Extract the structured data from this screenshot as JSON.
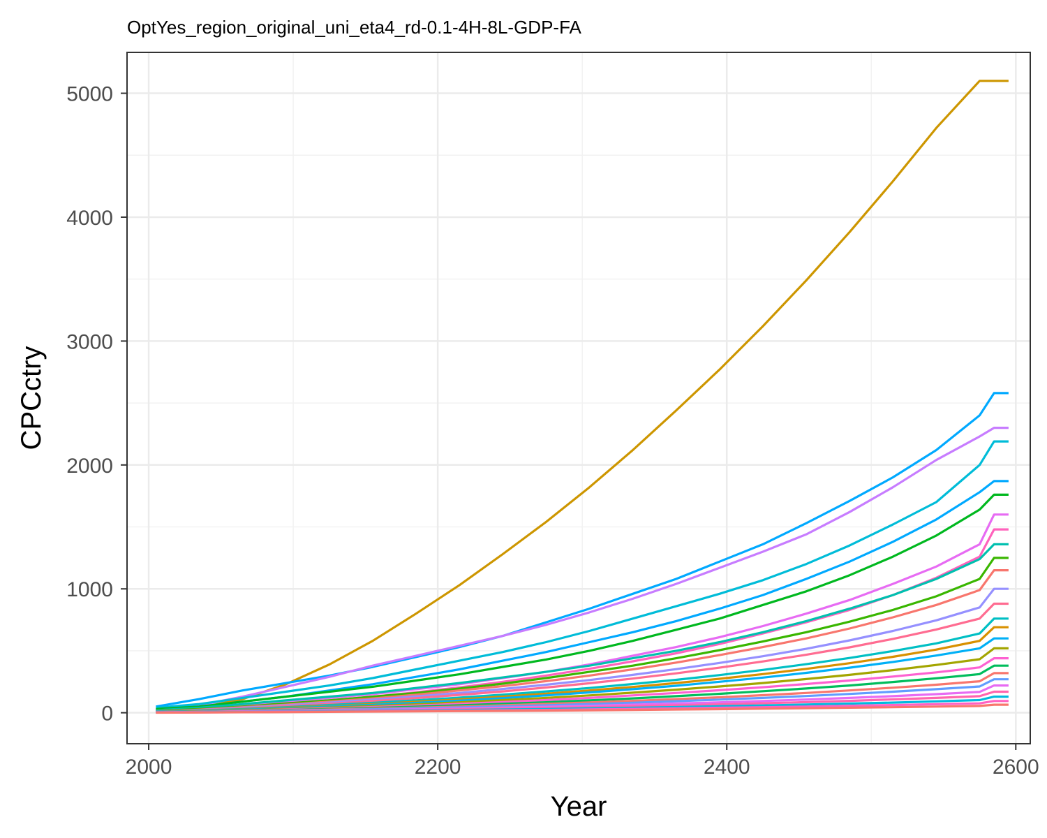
{
  "chart_data": {
    "type": "line",
    "title": "OptYes_region_original_uni_eta4_rd-0.1-4H-8L-GDP-FA",
    "xlabel": "Year",
    "ylabel": "CPCctry",
    "xlim": [
      1985,
      2610
    ],
    "ylim": [
      -250,
      5330
    ],
    "x_ticks": [
      2000,
      2200,
      2400,
      2600
    ],
    "y_ticks": [
      0,
      1000,
      2000,
      3000,
      4000,
      5000
    ],
    "x_tick_labels": [
      "2000",
      "2200",
      "2400",
      "2600"
    ],
    "y_tick_labels": [
      "0",
      "1000",
      "2000",
      "3000",
      "4000",
      "5000"
    ],
    "grid": true,
    "legend": "none",
    "x": [
      2005,
      2035,
      2065,
      2095,
      2125,
      2155,
      2185,
      2215,
      2245,
      2275,
      2305,
      2335,
      2365,
      2395,
      2425,
      2455,
      2485,
      2515,
      2545,
      2575,
      2585,
      2595
    ],
    "series": [
      {
        "color": "#CD9600",
        "values": [
          20,
          40,
          110,
          230,
          390,
          580,
          800,
          1030,
          1280,
          1540,
          1820,
          2120,
          2440,
          2770,
          3120,
          3490,
          3880,
          4290,
          4720,
          5100,
          5100,
          5100
        ]
      },
      {
        "color": "#00A9FF",
        "values": [
          50,
          110,
          180,
          240,
          300,
          370,
          450,
          530,
          620,
          730,
          840,
          960,
          1080,
          1220,
          1360,
          1530,
          1710,
          1900,
          2120,
          2400,
          2580,
          2580
        ]
      },
      {
        "color": "#C77CFF",
        "values": [
          30,
          60,
          130,
          210,
          290,
          380,
          460,
          540,
          620,
          710,
          810,
          920,
          1040,
          1170,
          1300,
          1440,
          1620,
          1820,
          2040,
          2230,
          2300,
          2300
        ]
      },
      {
        "color": "#00BCD8",
        "values": [
          40,
          70,
          120,
          170,
          220,
          280,
          350,
          420,
          490,
          570,
          660,
          760,
          860,
          960,
          1070,
          1200,
          1350,
          1520,
          1700,
          2000,
          2190,
          2190
        ]
      },
      {
        "color": "#00A9FF",
        "values": [
          30,
          50,
          90,
          130,
          180,
          230,
          290,
          350,
          420,
          490,
          570,
          650,
          740,
          840,
          950,
          1080,
          1220,
          1380,
          1560,
          1780,
          1870,
          1870
        ]
      },
      {
        "color": "#00B81F",
        "values": [
          30,
          50,
          90,
          130,
          170,
          210,
          260,
          310,
          370,
          430,
          500,
          580,
          670,
          760,
          870,
          980,
          1110,
          1260,
          1430,
          1640,
          1760,
          1760
        ]
      },
      {
        "color": "#E76BF3",
        "values": [
          20,
          35,
          60,
          90,
          120,
          150,
          190,
          230,
          280,
          330,
          390,
          460,
          530,
          610,
          700,
          800,
          910,
          1040,
          1180,
          1360,
          1600,
          1600
        ]
      },
      {
        "color": "#FF62BC",
        "values": [
          15,
          30,
          50,
          75,
          100,
          130,
          165,
          205,
          250,
          300,
          355,
          415,
          480,
          555,
          640,
          730,
          830,
          950,
          1090,
          1260,
          1480,
          1480
        ]
      },
      {
        "color": "#00C0AF",
        "values": [
          20,
          40,
          70,
          100,
          130,
          160,
          200,
          240,
          285,
          330,
          380,
          440,
          500,
          570,
          650,
          740,
          840,
          950,
          1080,
          1240,
          1360,
          1360
        ]
      },
      {
        "color": "#39B600",
        "values": [
          15,
          30,
          50,
          75,
          100,
          130,
          160,
          195,
          235,
          280,
          330,
          380,
          440,
          505,
          575,
          650,
          735,
          830,
          940,
          1080,
          1250,
          1250
        ]
      },
      {
        "color": "#F8766D",
        "values": [
          10,
          25,
          45,
          65,
          90,
          115,
          145,
          180,
          215,
          255,
          300,
          350,
          405,
          465,
          530,
          600,
          680,
          770,
          870,
          990,
          1150,
          1150
        ]
      },
      {
        "color": "#9590FF",
        "values": [
          10,
          22,
          40,
          60,
          82,
          106,
          132,
          160,
          192,
          226,
          264,
          306,
          352,
          402,
          456,
          516,
          584,
          660,
          746,
          850,
          1000,
          1000
        ]
      },
      {
        "color": "#FF6C91",
        "values": [
          10,
          20,
          35,
          52,
          72,
          94,
          118,
          144,
          172,
          204,
          238,
          276,
          318,
          364,
          414,
          468,
          528,
          596,
          672,
          760,
          880,
          880
        ]
      },
      {
        "color": "#00BFC4",
        "values": [
          10,
          18,
          30,
          45,
          62,
          80,
          100,
          122,
          146,
          172,
          200,
          232,
          266,
          304,
          346,
          392,
          442,
          498,
          560,
          640,
          760,
          760
        ]
      },
      {
        "color": "#D89000",
        "values": [
          8,
          15,
          26,
          40,
          54,
          70,
          88,
          108,
          130,
          154,
          180,
          208,
          240,
          274,
          312,
          354,
          400,
          452,
          510,
          580,
          690,
          690
        ]
      },
      {
        "color": "#00B0F6",
        "values": [
          8,
          14,
          24,
          36,
          50,
          64,
          80,
          98,
          118,
          140,
          164,
          190,
          218,
          250,
          284,
          322,
          364,
          410,
          462,
          520,
          600,
          600
        ]
      },
      {
        "color": "#A3A500",
        "values": [
          6,
          12,
          20,
          30,
          42,
          54,
          68,
          84,
          102,
          120,
          140,
          162,
          186,
          212,
          240,
          272,
          306,
          344,
          386,
          432,
          520,
          520
        ]
      },
      {
        "color": "#FD61D1",
        "values": [
          6,
          10,
          18,
          26,
          36,
          46,
          58,
          72,
          86,
          102,
          120,
          140,
          160,
          182,
          206,
          232,
          260,
          292,
          326,
          366,
          440,
          440
        ]
      },
      {
        "color": "#00BD5C",
        "values": [
          5,
          9,
          15,
          22,
          30,
          39,
          49,
          60,
          72,
          85,
          100,
          116,
          134,
          153,
          174,
          196,
          220,
          248,
          278,
          312,
          380,
          380
        ]
      },
      {
        "color": "#F8766D",
        "values": [
          4,
          8,
          13,
          19,
          26,
          33,
          41,
          50,
          60,
          71,
          83,
          96,
          110,
          125,
          142,
          160,
          180,
          202,
          226,
          254,
          320,
          320
        ]
      },
      {
        "color": "#619CFF",
        "values": [
          4,
          7,
          11,
          16,
          22,
          28,
          35,
          43,
          51,
          60,
          70,
          81,
          93,
          106,
          120,
          135,
          152,
          170,
          190,
          212,
          270,
          270
        ]
      },
      {
        "color": "#E76BF3",
        "values": [
          3,
          6,
          9,
          13,
          18,
          23,
          28,
          34,
          41,
          48,
          56,
          65,
          74,
          84,
          95,
          107,
          120,
          134,
          150,
          168,
          220,
          220
        ]
      },
      {
        "color": "#FF65AE",
        "values": [
          3,
          5,
          8,
          11,
          15,
          19,
          23,
          28,
          33,
          39,
          45,
          52,
          60,
          68,
          77,
          86,
          96,
          108,
          120,
          134,
          170,
          170
        ]
      },
      {
        "color": "#00BADE",
        "values": [
          2,
          4,
          6,
          9,
          12,
          15,
          18,
          22,
          26,
          30,
          35,
          40,
          46,
          52,
          59,
          66,
          74,
          82,
          92,
          102,
          130,
          130
        ]
      },
      {
        "color": "#FF61C3",
        "values": [
          2,
          3,
          5,
          7,
          9,
          11,
          14,
          17,
          20,
          23,
          27,
          31,
          35,
          40,
          45,
          50,
          56,
          62,
          69,
          76,
          95,
          95
        ]
      },
      {
        "color": "#F8766D",
        "values": [
          1,
          2,
          4,
          5,
          7,
          9,
          11,
          13,
          15,
          17,
          20,
          23,
          26,
          29,
          33,
          37,
          41,
          45,
          50,
          55,
          65,
          65
        ]
      }
    ]
  }
}
